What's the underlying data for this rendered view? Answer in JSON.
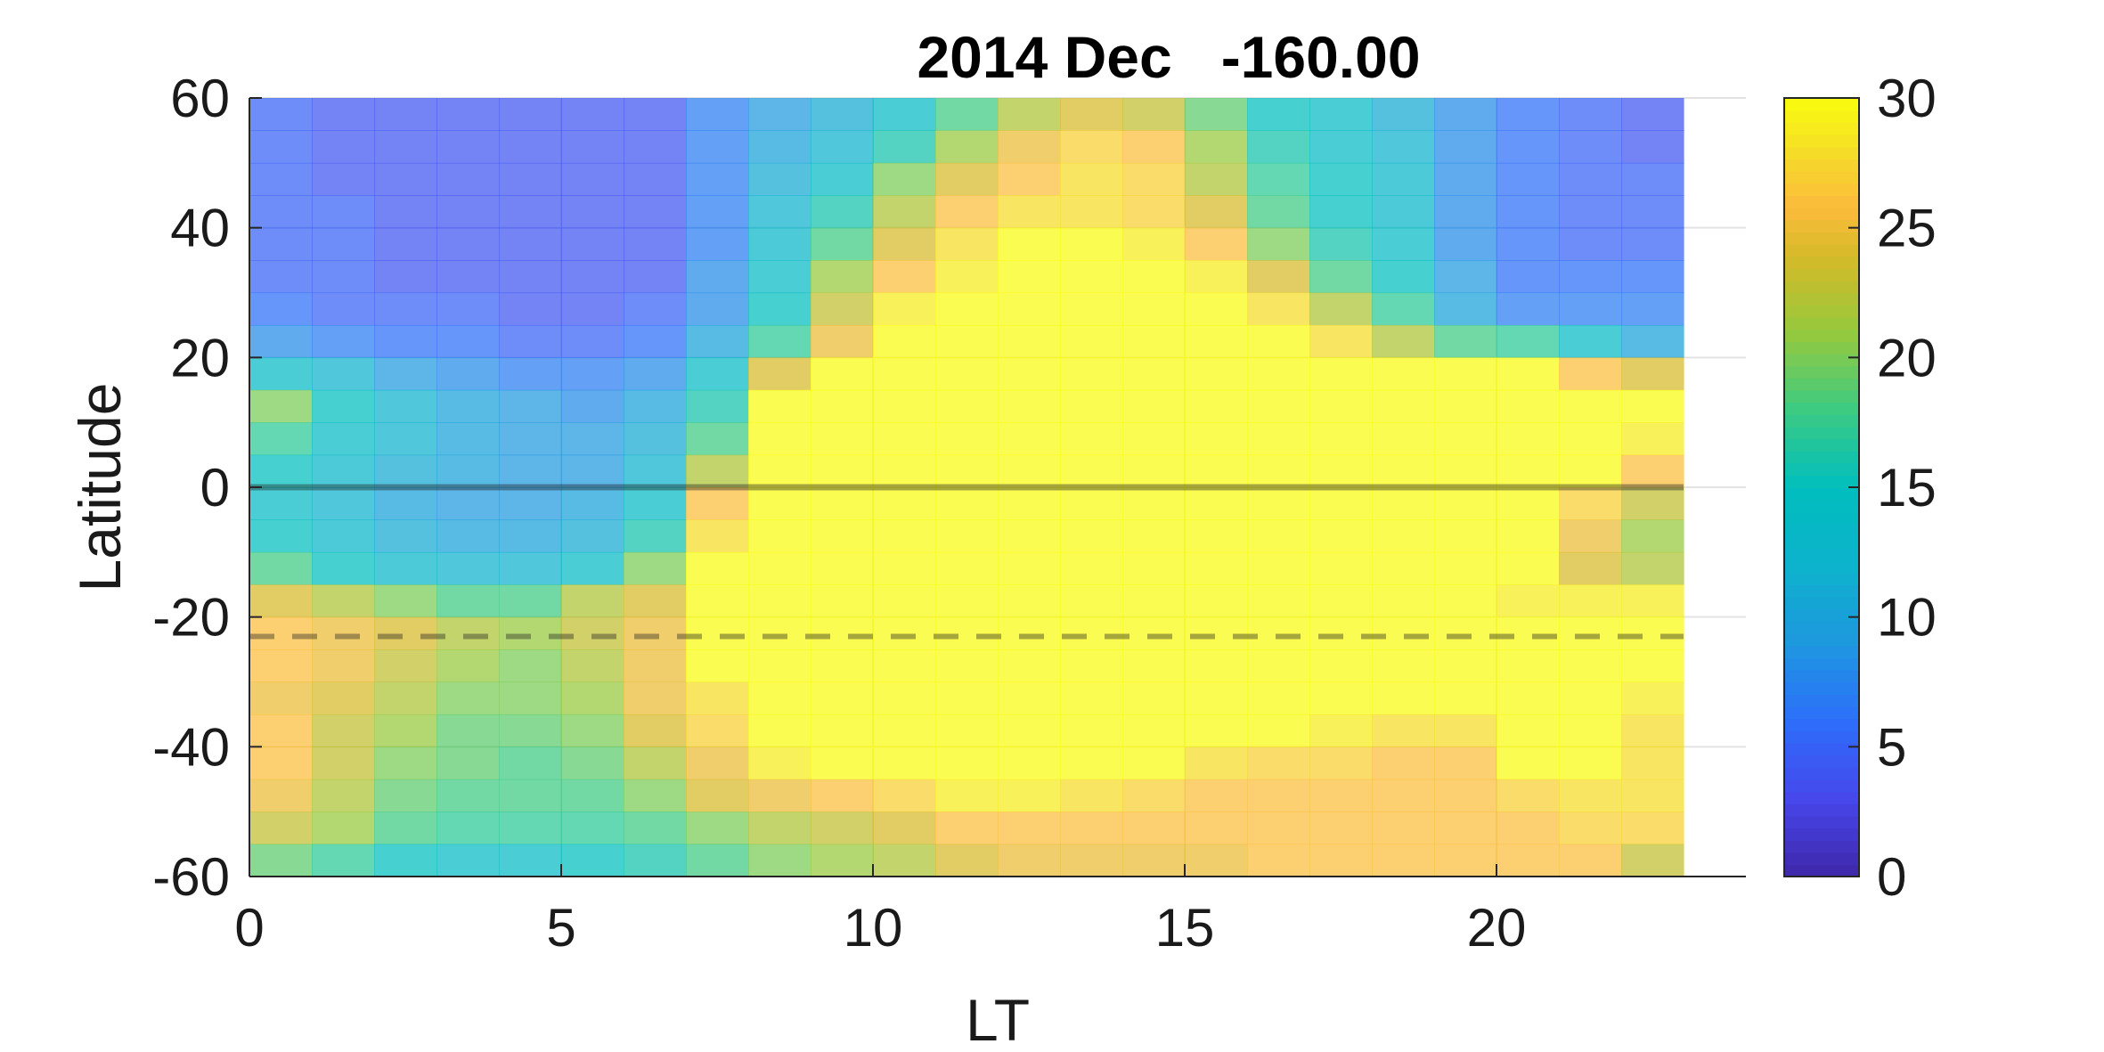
{
  "chart_data": {
    "type": "heatmap",
    "title": "2014 Dec   -160.00",
    "xlabel": "LT",
    "ylabel": "Latitude",
    "xlim": [
      0,
      24
    ],
    "ylim": [
      -60,
      60
    ],
    "x_data_range": [
      0,
      23
    ],
    "xticks": [
      0,
      5,
      10,
      15,
      20
    ],
    "yticks": [
      -60,
      -40,
      -20,
      0,
      20,
      40,
      60
    ],
    "grid": true,
    "colorbar": {
      "range": [
        0,
        30
      ],
      "ticks": [
        0,
        5,
        10,
        15,
        20,
        25,
        30
      ],
      "colormap": "parula"
    },
    "reference_lines": [
      {
        "latitude": 0,
        "style": "solid"
      },
      {
        "latitude": -23,
        "style": "dashed"
      }
    ],
    "lt_columns": [
      0,
      1,
      2,
      3,
      4,
      5,
      6,
      7,
      8,
      9,
      10,
      11,
      12,
      13,
      14,
      15,
      16,
      17,
      18,
      19,
      20,
      21,
      22
    ],
    "lat_rows": [
      57.5,
      52.5,
      47.5,
      42.5,
      37.5,
      32.5,
      27.5,
      22.5,
      17.5,
      12.5,
      7.5,
      2.5,
      -2.5,
      -7.5,
      -12.5,
      -17.5,
      -22.5,
      -27.5,
      -32.5,
      -37.5,
      -42.5,
      -47.5,
      -52.5,
      -57.5
    ],
    "values": [
      [
        5,
        4,
        4,
        4,
        4,
        4,
        4,
        7,
        9,
        11,
        14,
        18,
        22,
        24,
        23,
        19,
        15,
        14,
        11,
        8,
        6,
        5,
        4
      ],
      [
        5,
        4,
        4,
        4,
        4,
        4,
        4,
        7,
        10,
        12,
        16,
        21,
        25,
        27,
        26,
        21,
        16,
        14,
        12,
        8,
        6,
        5,
        4
      ],
      [
        5,
        4,
        4,
        4,
        4,
        4,
        4,
        7,
        11,
        14,
        20,
        24,
        26,
        28,
        27,
        22,
        17,
        15,
        13,
        8,
        6,
        5,
        5
      ],
      [
        5,
        5,
        4,
        4,
        4,
        4,
        4,
        7,
        12,
        16,
        22,
        26,
        28,
        28,
        27,
        24,
        18,
        15,
        13,
        8,
        6,
        5,
        5
      ],
      [
        5,
        5,
        4,
        4,
        4,
        4,
        4,
        7,
        13,
        18,
        24,
        28,
        30,
        30,
        29,
        26,
        20,
        16,
        14,
        8,
        6,
        5,
        5
      ],
      [
        5,
        5,
        4,
        4,
        4,
        4,
        4,
        8,
        14,
        21,
        26,
        29,
        30,
        30,
        30,
        29,
        24,
        18,
        15,
        9,
        6,
        6,
        6
      ],
      [
        6,
        5,
        5,
        5,
        4,
        4,
        5,
        8,
        15,
        23,
        29,
        30,
        30,
        30,
        30,
        30,
        28,
        22,
        17,
        10,
        7,
        7,
        7
      ],
      [
        8,
        7,
        6,
        6,
        5,
        5,
        6,
        10,
        17,
        25,
        30,
        30,
        30,
        30,
        30,
        30,
        30,
        28,
        22,
        18,
        17,
        14,
        10
      ],
      [
        14,
        12,
        9,
        8,
        7,
        7,
        8,
        14,
        24,
        30,
        30,
        30,
        30,
        30,
        30,
        30,
        30,
        30,
        30,
        30,
        30,
        26,
        24
      ],
      [
        20,
        15,
        12,
        10,
        9,
        8,
        10,
        16,
        30,
        30,
        30,
        30,
        30,
        30,
        30,
        30,
        30,
        30,
        30,
        30,
        30,
        30,
        30
      ],
      [
        17,
        14,
        12,
        10,
        9,
        9,
        11,
        18,
        30,
        30,
        30,
        30,
        30,
        30,
        30,
        30,
        30,
        30,
        30,
        30,
        30,
        30,
        29
      ],
      [
        15,
        13,
        11,
        10,
        9,
        9,
        12,
        22,
        30,
        30,
        30,
        30,
        30,
        30,
        30,
        30,
        30,
        30,
        30,
        30,
        30,
        30,
        26
      ],
      [
        14,
        12,
        10,
        9,
        9,
        10,
        14,
        26,
        30,
        30,
        30,
        30,
        30,
        30,
        30,
        30,
        30,
        30,
        30,
        30,
        30,
        27,
        23
      ],
      [
        15,
        13,
        11,
        10,
        10,
        11,
        16,
        28,
        30,
        30,
        30,
        30,
        30,
        30,
        30,
        30,
        30,
        30,
        30,
        30,
        30,
        25,
        21
      ],
      [
        18,
        15,
        13,
        12,
        12,
        14,
        20,
        30,
        30,
        30,
        30,
        30,
        30,
        30,
        30,
        30,
        30,
        30,
        30,
        30,
        30,
        24,
        22
      ],
      [
        24,
        22,
        20,
        18,
        18,
        22,
        24,
        30,
        30,
        30,
        30,
        30,
        30,
        30,
        30,
        30,
        30,
        30,
        30,
        30,
        29,
        29,
        29
      ],
      [
        26,
        25,
        24,
        22,
        21,
        23,
        25,
        30,
        30,
        30,
        30,
        30,
        30,
        30,
        30,
        30,
        30,
        30,
        30,
        30,
        30,
        30,
        30
      ],
      [
        26,
        25,
        23,
        21,
        20,
        22,
        25,
        30,
        30,
        30,
        30,
        30,
        30,
        30,
        30,
        30,
        30,
        30,
        30,
        30,
        30,
        30,
        30
      ],
      [
        25,
        24,
        22,
        20,
        20,
        21,
        25,
        28,
        30,
        30,
        30,
        30,
        30,
        30,
        30,
        30,
        30,
        30,
        30,
        30,
        30,
        30,
        29
      ],
      [
        26,
        23,
        21,
        19,
        19,
        20,
        24,
        27,
        30,
        30,
        30,
        30,
        30,
        30,
        30,
        30,
        30,
        29,
        28,
        28,
        30,
        30,
        28
      ],
      [
        26,
        23,
        20,
        19,
        18,
        19,
        22,
        25,
        29,
        30,
        30,
        30,
        30,
        30,
        30,
        28,
        27,
        27,
        26,
        26,
        30,
        30,
        28
      ],
      [
        25,
        22,
        19,
        18,
        18,
        18,
        20,
        24,
        25,
        26,
        27,
        29,
        29,
        28,
        27,
        26,
        26,
        26,
        26,
        26,
        27,
        28,
        28
      ],
      [
        23,
        21,
        18,
        17,
        17,
        17,
        18,
        20,
        22,
        23,
        24,
        26,
        26,
        26,
        26,
        26,
        26,
        26,
        26,
        26,
        26,
        27,
        27
      ],
      [
        19,
        17,
        15,
        14,
        14,
        15,
        16,
        18,
        20,
        21,
        22,
        24,
        25,
        25,
        25,
        25,
        26,
        26,
        26,
        26,
        26,
        26,
        23
      ]
    ]
  }
}
